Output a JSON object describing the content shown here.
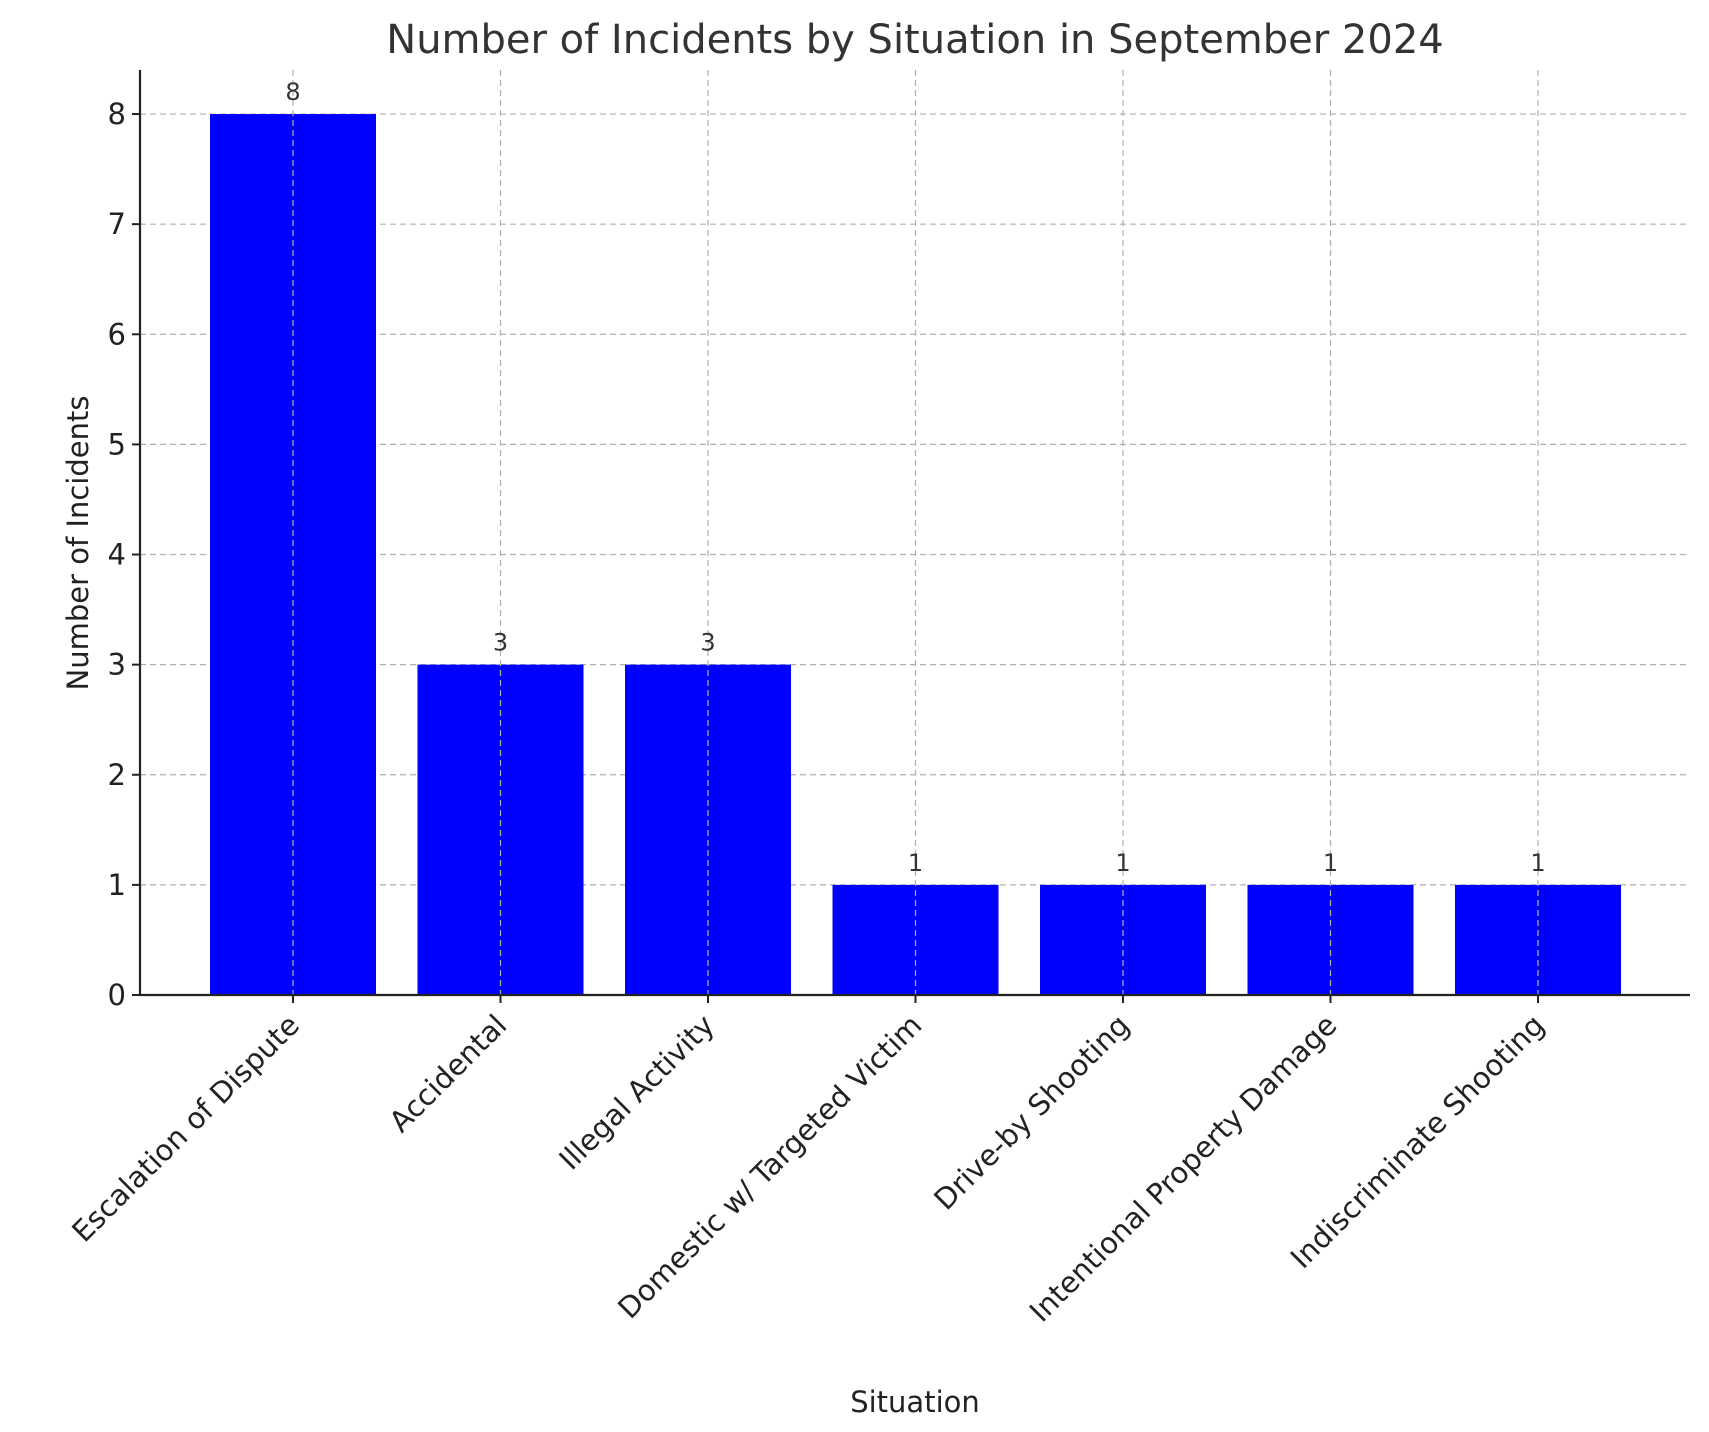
{
  "chart_data": {
    "type": "bar",
    "title": "Number of Incidents by Situation in September 2024",
    "xlabel": "Situation",
    "ylabel": "Number of Incidents",
    "categories": [
      "Escalation of Dispute",
      "Accidental",
      "Illegal Activity",
      "Domestic w/ Targeted Victim",
      "Drive-by Shooting",
      "Intentional Property Damage",
      "Indiscriminate Shooting"
    ],
    "values": [
      8,
      3,
      3,
      1,
      1,
      1,
      1
    ],
    "data_labels": [
      "8",
      "3",
      "3",
      "1",
      "1",
      "1",
      "1"
    ],
    "y_ticks": [
      "0",
      "1",
      "2",
      "3",
      "4",
      "5",
      "6",
      "7",
      "8"
    ],
    "ylim": [
      0,
      8.4
    ],
    "grid": true,
    "bar_color": "#0000ff"
  }
}
